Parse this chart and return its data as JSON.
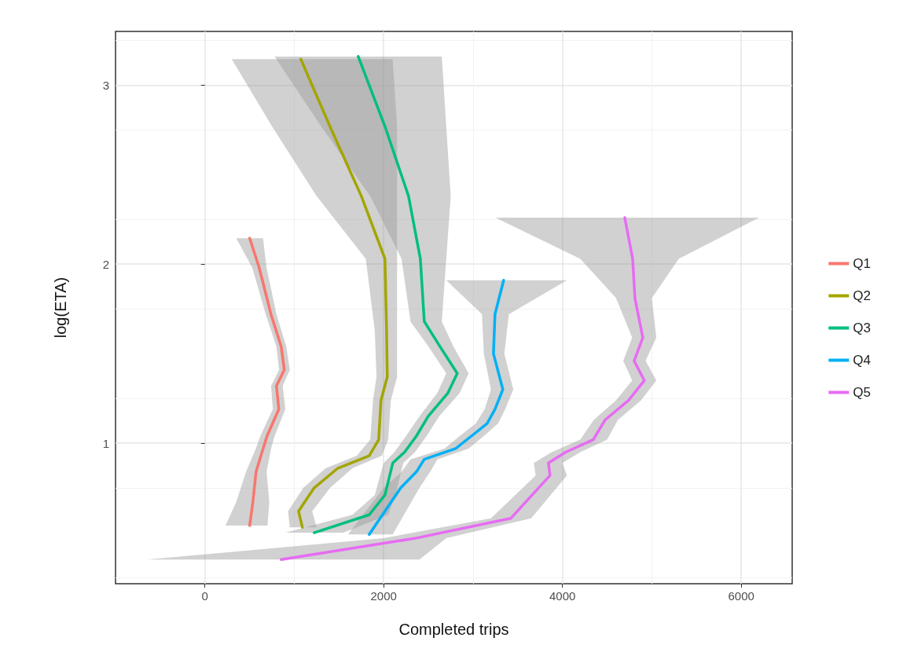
{
  "chart_data": {
    "type": "line",
    "orientation": "horizontal",
    "xlabel": "Completed trips",
    "ylabel": "log(ETA)",
    "xlim": [
      -1000,
      6570
    ],
    "xticks": [
      0,
      2000,
      4000,
      6000
    ],
    "ylim": [
      0.215,
      3.3
    ],
    "yticks": [
      1,
      2,
      3
    ],
    "grid": true,
    "legend": "right",
    "marker": "none",
    "line_style": "solid",
    "series": [
      {
        "name": "Q1",
        "color": "#f8766d",
        "x": [
          2.145,
          1.98,
          1.72,
          1.54,
          1.41,
          1.32,
          1.19,
          1.04,
          0.97,
          0.84,
          0.67,
          0.54
        ],
        "values": [
          501,
          607,
          739,
          853,
          888,
          800,
          827,
          695,
          651,
          572,
          536,
          501
        ],
        "lower": [
          350,
          530,
          680,
          800,
          830,
          740,
          760,
          620,
          570,
          460,
          350,
          230
        ],
        "upper": [
          650,
          690,
          800,
          910,
          950,
          870,
          900,
          780,
          740,
          690,
          720,
          700
        ]
      },
      {
        "name": "Q2",
        "color": "#a3a500",
        "x": [
          3.145,
          2.77,
          2.38,
          2.03,
          1.63,
          1.37,
          1.24,
          1.02,
          0.93,
          0.86,
          0.75,
          0.62,
          0.53
        ],
        "values": [
          1073,
          1398,
          1750,
          2014,
          2032,
          2040,
          1970,
          1944,
          1838,
          1486,
          1222,
          1047,
          1090
        ],
        "lower": [
          300,
          750,
          1250,
          1800,
          1900,
          1920,
          1880,
          1850,
          1700,
          1350,
          1100,
          930,
          950
        ],
        "upper": [
          2100,
          2150,
          2150,
          2150,
          2150,
          2150,
          2080,
          2050,
          1980,
          1650,
          1400,
          1200,
          1250
        ]
      },
      {
        "name": "Q3",
        "color": "#00bf7d",
        "x": [
          3.16,
          2.77,
          2.38,
          2.03,
          1.68,
          1.54,
          1.39,
          1.28,
          1.15,
          1.04,
          0.95,
          0.89,
          0.71,
          0.6,
          0.5
        ],
        "values": [
          1715,
          2014,
          2278,
          2410,
          2454,
          2630,
          2823,
          2718,
          2498,
          2366,
          2234,
          2102,
          2014,
          1838,
          1222
        ],
        "lower": [
          780,
          1300,
          1850,
          2200,
          2300,
          2500,
          2700,
          2600,
          2400,
          2250,
          2120,
          2000,
          1900,
          1650,
          900
        ],
        "upper": [
          2650,
          2700,
          2750,
          2700,
          2650,
          2780,
          2950,
          2850,
          2620,
          2480,
          2350,
          2220,
          2130,
          2050,
          1550
        ]
      },
      {
        "name": "Q4",
        "color": "#00b0f6",
        "x": [
          1.91,
          1.72,
          1.5,
          1.3,
          1.19,
          1.11,
          1.04,
          0.97,
          0.91,
          0.84,
          0.75,
          0.49
        ],
        "values": [
          3342,
          3245,
          3228,
          3333,
          3245,
          3157,
          2982,
          2806,
          2454,
          2366,
          2190,
          1838
        ],
        "lower": [
          2700,
          3100,
          3120,
          3200,
          3130,
          3030,
          2850,
          2680,
          2300,
          2200,
          2000,
          1600
        ],
        "upper": [
          4050,
          3400,
          3350,
          3450,
          3360,
          3280,
          3120,
          2950,
          2600,
          2520,
          2400,
          2100
        ]
      },
      {
        "name": "Q5",
        "color": "#e76bf3",
        "x": [
          2.26,
          2.03,
          1.81,
          1.59,
          1.46,
          1.35,
          1.24,
          1.13,
          1.02,
          0.95,
          0.89,
          0.82,
          0.58,
          0.47,
          0.35
        ],
        "values": [
          4697,
          4785,
          4811,
          4899,
          4802,
          4916,
          4741,
          4477,
          4345,
          4037,
          3843,
          3861,
          3421,
          2366,
          853
        ],
        "lower": [
          3250,
          4200,
          4600,
          4780,
          4680,
          4780,
          4600,
          4350,
          4200,
          3880,
          3680,
          3700,
          3200,
          2000,
          -650
        ],
        "upper": [
          6200,
          5300,
          5000,
          5050,
          4930,
          5050,
          4880,
          4620,
          4500,
          4200,
          4000,
          4050,
          3650,
          2700,
          2400
        ]
      }
    ]
  }
}
